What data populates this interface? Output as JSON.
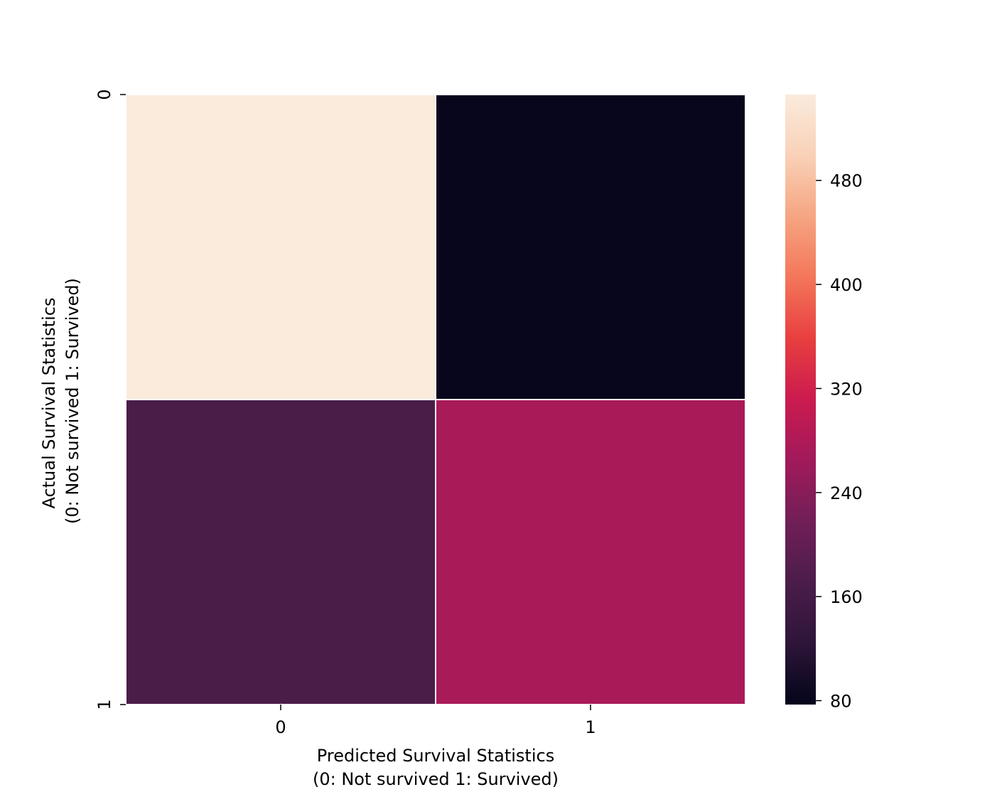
{
  "chart_data": {
    "type": "heatmap",
    "title": "",
    "x_categories": [
      "0",
      "1"
    ],
    "y_categories": [
      "0",
      "1"
    ],
    "values": [
      [
        549,
        81
      ],
      [
        169,
        273
      ]
    ],
    "xlabel_lines": [
      "Predicted Survival Statistics",
      "(0: Not survived 1: Survived)"
    ],
    "ylabel_lines": [
      "Actual Survival Statistics",
      "(0: Not survived 1: Survived)"
    ],
    "colorbar": {
      "ticks": [
        80,
        160,
        240,
        320,
        400,
        480
      ],
      "range": [
        77,
        546
      ],
      "colormap": "rocket",
      "colormap_stops": [
        "#03051a",
        "#2e1539",
        "#4b1d4a",
        "#711f57",
        "#a11a5b",
        "#cb1b4f",
        "#e83f3f",
        "#f3765a",
        "#f6a581",
        "#f9d1b7",
        "#faebdd"
      ]
    },
    "grid": false,
    "cell_separator_color": "#ffffff"
  }
}
